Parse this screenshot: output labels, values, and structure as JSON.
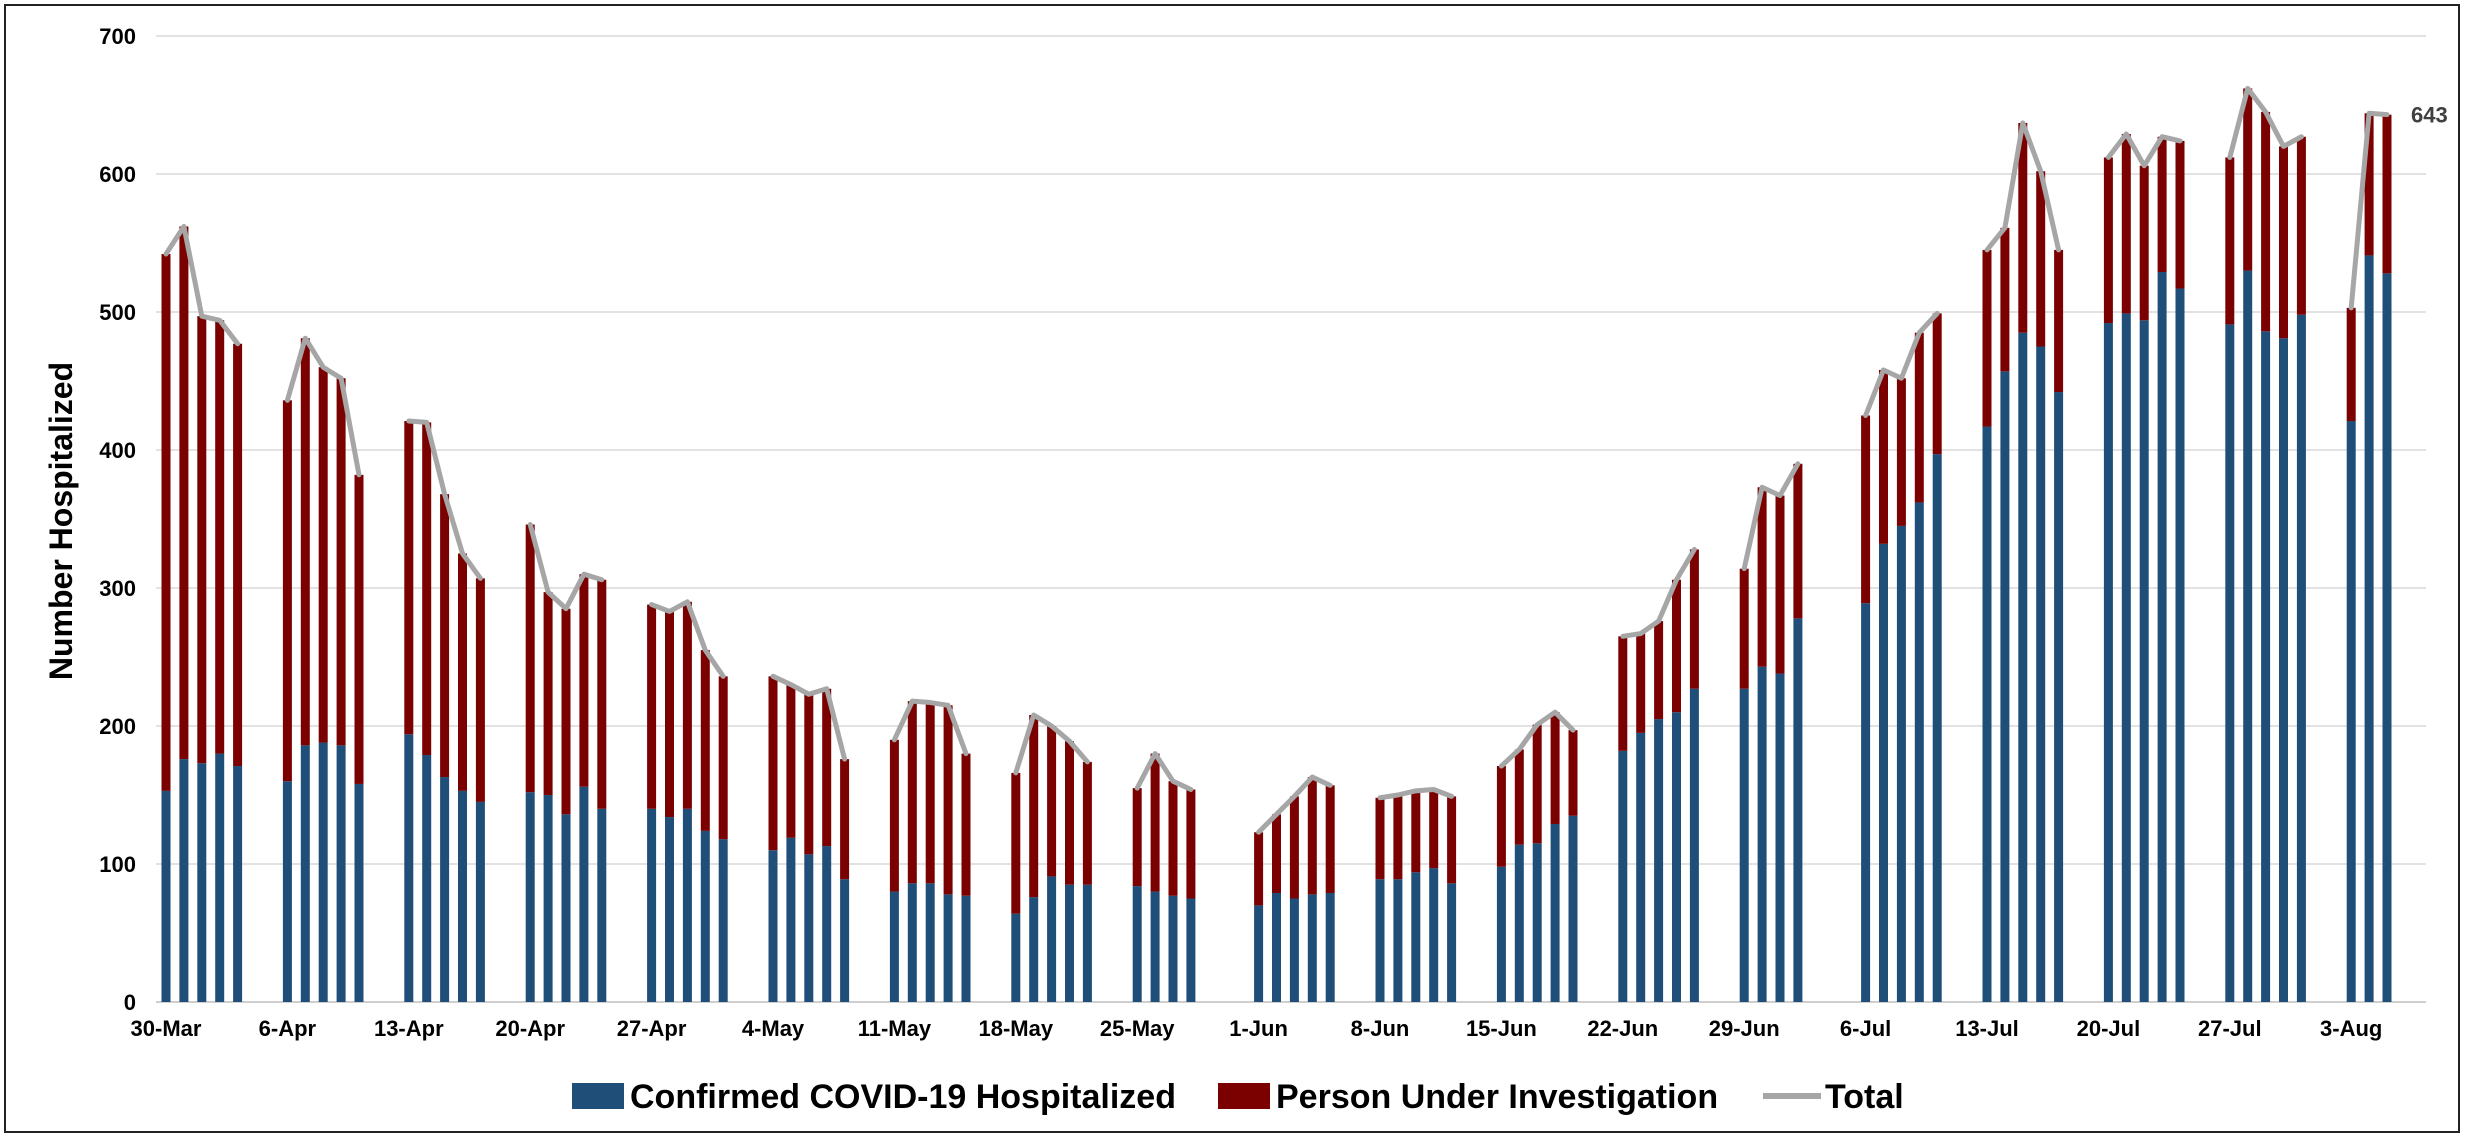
{
  "chart_data": {
    "type": "bar",
    "ylabel": "Number Hospitalized",
    "ylim": [
      0,
      700
    ],
    "yticks": [
      0,
      100,
      200,
      300,
      400,
      500,
      600,
      700
    ],
    "grid": true,
    "legend_position": "bottom",
    "colors": {
      "confirmed": "#1F4E79",
      "pui": "#7B0000",
      "total": "#A6A6A6",
      "grid": "#D9D9D9"
    },
    "series": [
      {
        "name": "Confirmed COVID-19 Hospitalized",
        "key": "confirmed",
        "style": "stacked-bar"
      },
      {
        "name": "Person Under Investigation",
        "key": "pui",
        "style": "stacked-bar"
      },
      {
        "name": "Total",
        "key": "total",
        "style": "line"
      }
    ],
    "weeks": [
      {
        "label": "30-Mar",
        "confirmed": [
          153,
          176,
          173,
          180,
          171
        ],
        "total": [
          542,
          562,
          497,
          494,
          477
        ]
      },
      {
        "label": "6-Apr",
        "confirmed": [
          160,
          186,
          188,
          186,
          158
        ],
        "total": [
          436,
          481,
          460,
          452,
          382
        ]
      },
      {
        "label": "13-Apr",
        "confirmed": [
          194,
          179,
          163,
          153,
          145
        ],
        "total": [
          421,
          420,
          368,
          325,
          307
        ]
      },
      {
        "label": "20-Apr",
        "confirmed": [
          152,
          150,
          136,
          156,
          140
        ],
        "total": [
          346,
          297,
          285,
          310,
          306
        ]
      },
      {
        "label": "27-Apr",
        "confirmed": [
          140,
          134,
          140,
          124,
          118
        ],
        "total": [
          288,
          283,
          290,
          255,
          236
        ]
      },
      {
        "label": "4-May",
        "confirmed": [
          110,
          119,
          107,
          113,
          89
        ],
        "total": [
          236,
          230,
          223,
          227,
          176
        ]
      },
      {
        "label": "11-May",
        "confirmed": [
          80,
          86,
          86,
          78,
          77
        ],
        "total": [
          190,
          218,
          217,
          215,
          180
        ]
      },
      {
        "label": "18-May",
        "confirmed": [
          64,
          76,
          91,
          85,
          85
        ],
        "total": [
          166,
          208,
          200,
          189,
          174
        ]
      },
      {
        "label": "25-May",
        "confirmed": [
          84,
          80,
          77,
          75,
          null
        ],
        "total": [
          155,
          180,
          160,
          154,
          null
        ]
      },
      {
        "label": "1-Jun",
        "confirmed": [
          70,
          79,
          75,
          78,
          79
        ],
        "total": [
          123,
          136,
          149,
          163,
          157
        ]
      },
      {
        "label": "8-Jun",
        "confirmed": [
          89,
          89,
          94,
          97,
          86
        ],
        "total": [
          148,
          150,
          153,
          154,
          149
        ]
      },
      {
        "label": "15-Jun",
        "confirmed": [
          98,
          114,
          115,
          129,
          135
        ],
        "total": [
          171,
          183,
          201,
          210,
          197
        ]
      },
      {
        "label": "22-Jun",
        "confirmed": [
          182,
          195,
          205,
          210,
          227
        ],
        "total": [
          265,
          267,
          276,
          306,
          328
        ]
      },
      {
        "label": "29-Jun",
        "confirmed": [
          227,
          243,
          238,
          278,
          null
        ],
        "total": [
          314,
          373,
          367,
          390,
          null
        ]
      },
      {
        "label": "6-Jul",
        "confirmed": [
          289,
          332,
          345,
          362,
          397
        ],
        "total": [
          425,
          458,
          452,
          485,
          499
        ]
      },
      {
        "label": "13-Jul",
        "confirmed": [
          417,
          457,
          485,
          475,
          442
        ],
        "total": [
          545,
          561,
          637,
          602,
          545
        ]
      },
      {
        "label": "20-Jul",
        "confirmed": [
          492,
          499,
          494,
          529,
          517
        ],
        "total": [
          612,
          629,
          606,
          627,
          624
        ]
      },
      {
        "label": "27-Jul",
        "confirmed": [
          491,
          530,
          486,
          481,
          498
        ],
        "total": [
          612,
          662,
          645,
          620,
          627
        ]
      },
      {
        "label": "3-Aug",
        "confirmed": [
          421,
          541,
          528,
          null,
          null
        ],
        "total": [
          503,
          644,
          643,
          null,
          null
        ]
      }
    ],
    "annotations": [
      {
        "text": "643",
        "series": "Total",
        "point": "last"
      }
    ]
  }
}
